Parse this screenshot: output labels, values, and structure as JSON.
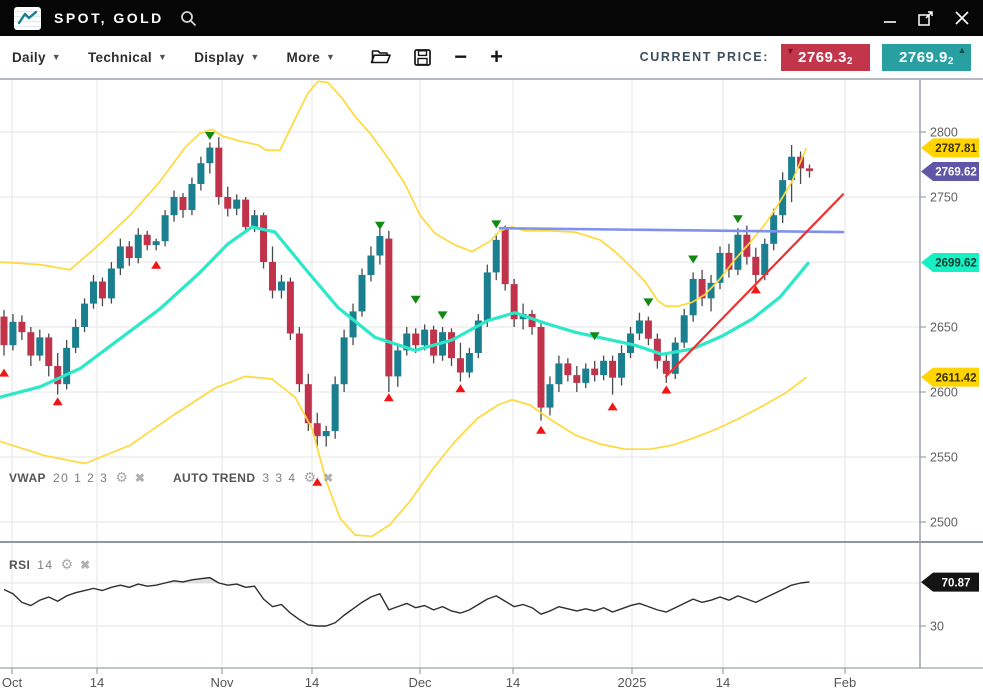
{
  "titlebar": {
    "title": "SPOT, GOLD"
  },
  "toolbar": {
    "menus": [
      {
        "label": "Daily"
      },
      {
        "label": "Technical"
      },
      {
        "label": "Display"
      },
      {
        "label": "More"
      }
    ],
    "icons": [
      "open-folder",
      "save",
      "zoom-out",
      "zoom-in"
    ],
    "minus_glyph": "−",
    "plus_glyph": "+",
    "current_price_label": "CURRENT PRICE:",
    "bid": {
      "value": "2769.3",
      "sub_digit": "2",
      "direction": "down",
      "bg": "#C2354A",
      "arrow_glyph": "▼"
    },
    "ask": {
      "value": "2769.9",
      "sub_digit": "2",
      "direction": "up",
      "bg": "#28A0A2",
      "arrow_glyph": "▲"
    }
  },
  "indicators": {
    "vwap": {
      "name": "VWAP",
      "params": "20 1 2 3"
    },
    "auto_trend": {
      "name": "AUTO TREND",
      "params": "3 3 4"
    },
    "rsi": {
      "name": "RSI",
      "params": "14"
    },
    "gear_glyph": "⚙",
    "close_glyph": "✖"
  },
  "chart_data": {
    "type": "candlestick",
    "symbol": "SPOT, GOLD",
    "timeframe": "Daily",
    "grid_prices": [
      2800,
      2750,
      2700,
      2650,
      2600,
      2550,
      2500
    ],
    "y_ticks_main": [
      2800,
      2750,
      2650,
      2600,
      2550,
      2500
    ],
    "rsi_grid": [
      70,
      30
    ],
    "y_ticks_rsi": [
      30
    ],
    "x_ticks": [
      {
        "x": 12,
        "label": "Oct"
      },
      {
        "x": 97,
        "label": "14"
      },
      {
        "x": 222,
        "label": "Nov"
      },
      {
        "x": 312,
        "label": "14"
      },
      {
        "x": 420,
        "label": "Dec"
      },
      {
        "x": 513,
        "label": "14"
      },
      {
        "x": 632,
        "label": "2025"
      },
      {
        "x": 723,
        "label": "14"
      },
      {
        "x": 845,
        "label": "Feb"
      }
    ],
    "candles": [
      [
        2658,
        2663,
        2628,
        2636
      ],
      [
        2636,
        2660,
        2632,
        2654
      ],
      [
        2654,
        2659,
        2640,
        2646
      ],
      [
        2646,
        2650,
        2620,
        2628
      ],
      [
        2628,
        2648,
        2624,
        2642
      ],
      [
        2642,
        2645,
        2612,
        2620
      ],
      [
        2620,
        2630,
        2598,
        2606
      ],
      [
        2606,
        2640,
        2602,
        2634
      ],
      [
        2634,
        2656,
        2630,
        2650
      ],
      [
        2650,
        2672,
        2646,
        2668
      ],
      [
        2668,
        2690,
        2664,
        2685
      ],
      [
        2685,
        2688,
        2666,
        2672
      ],
      [
        2672,
        2700,
        2668,
        2695
      ],
      [
        2695,
        2718,
        2690,
        2712
      ],
      [
        2712,
        2716,
        2697,
        2703
      ],
      [
        2703,
        2726,
        2699,
        2721
      ],
      [
        2721,
        2724,
        2709,
        2713
      ],
      [
        2713,
        2718,
        2709,
        2716
      ],
      [
        2716,
        2740,
        2712,
        2736
      ],
      [
        2736,
        2755,
        2731,
        2750
      ],
      [
        2750,
        2753,
        2734,
        2740
      ],
      [
        2740,
        2765,
        2736,
        2760
      ],
      [
        2760,
        2781,
        2755,
        2776
      ],
      [
        2776,
        2792,
        2768,
        2788
      ],
      [
        2788,
        2796,
        2744,
        2750
      ],
      [
        2750,
        2758,
        2735,
        2741
      ],
      [
        2741,
        2752,
        2736,
        2748
      ],
      [
        2748,
        2750,
        2722,
        2727
      ],
      [
        2727,
        2740,
        2723,
        2736
      ],
      [
        2736,
        2738,
        2695,
        2700
      ],
      [
        2700,
        2712,
        2672,
        2678
      ],
      [
        2678,
        2690,
        2672,
        2685
      ],
      [
        2685,
        2688,
        2640,
        2645
      ],
      [
        2645,
        2650,
        2600,
        2606
      ],
      [
        2606,
        2614,
        2570,
        2576
      ],
      [
        2576,
        2584,
        2556,
        2566
      ],
      [
        2566,
        2574,
        2558,
        2570
      ],
      [
        2570,
        2612,
        2564,
        2606
      ],
      [
        2606,
        2648,
        2600,
        2642
      ],
      [
        2642,
        2668,
        2636,
        2662
      ],
      [
        2662,
        2695,
        2658,
        2690
      ],
      [
        2690,
        2712,
        2685,
        2705
      ],
      [
        2705,
        2726,
        2698,
        2720
      ],
      [
        2718,
        2724,
        2600,
        2612
      ],
      [
        2612,
        2636,
        2604,
        2632
      ],
      [
        2632,
        2650,
        2628,
        2645
      ],
      [
        2645,
        2649,
        2630,
        2636
      ],
      [
        2636,
        2652,
        2632,
        2648
      ],
      [
        2648,
        2651,
        2622,
        2628
      ],
      [
        2628,
        2650,
        2624,
        2646
      ],
      [
        2646,
        2649,
        2620,
        2626
      ],
      [
        2626,
        2638,
        2608,
        2615
      ],
      [
        2615,
        2634,
        2611,
        2630
      ],
      [
        2630,
        2660,
        2626,
        2655
      ],
      [
        2655,
        2698,
        2650,
        2692
      ],
      [
        2692,
        2722,
        2686,
        2717
      ],
      [
        2726,
        2728,
        2678,
        2683
      ],
      [
        2683,
        2687,
        2650,
        2656
      ],
      [
        2656,
        2668,
        2648,
        2660
      ],
      [
        2660,
        2663,
        2644,
        2650
      ],
      [
        2650,
        2654,
        2578,
        2588
      ],
      [
        2588,
        2612,
        2582,
        2606
      ],
      [
        2606,
        2628,
        2600,
        2622
      ],
      [
        2622,
        2626,
        2608,
        2613
      ],
      [
        2613,
        2620,
        2600,
        2607
      ],
      [
        2607,
        2622,
        2603,
        2618
      ],
      [
        2618,
        2624,
        2608,
        2613
      ],
      [
        2613,
        2628,
        2609,
        2624
      ],
      [
        2624,
        2628,
        2598,
        2611
      ],
      [
        2611,
        2636,
        2605,
        2630
      ],
      [
        2630,
        2650,
        2626,
        2645
      ],
      [
        2645,
        2661,
        2640,
        2655
      ],
      [
        2655,
        2658,
        2636,
        2641
      ],
      [
        2641,
        2645,
        2618,
        2624
      ],
      [
        2624,
        2629,
        2607,
        2614
      ],
      [
        2614,
        2642,
        2610,
        2638
      ],
      [
        2638,
        2664,
        2634,
        2659
      ],
      [
        2659,
        2692,
        2654,
        2687
      ],
      [
        2687,
        2694,
        2666,
        2672
      ],
      [
        2672,
        2690,
        2662,
        2684
      ],
      [
        2684,
        2712,
        2679,
        2707
      ],
      [
        2707,
        2714,
        2688,
        2694
      ],
      [
        2694,
        2726,
        2690,
        2721
      ],
      [
        2721,
        2728,
        2698,
        2704
      ],
      [
        2704,
        2711,
        2684,
        2690
      ],
      [
        2690,
        2718,
        2686,
        2714
      ],
      [
        2714,
        2741,
        2709,
        2736
      ],
      [
        2736,
        2769,
        2730,
        2763
      ],
      [
        2763,
        2790,
        2746,
        2781
      ],
      [
        2781,
        2785,
        2760,
        2772
      ],
      [
        2772,
        2775,
        2765,
        2770
      ]
    ],
    "signals": {
      "sell": [
        [
          23,
          2800
        ],
        [
          42,
          2731
        ],
        [
          46,
          2674
        ],
        [
          49,
          2662
        ],
        [
          55,
          2732
        ],
        [
          66,
          2646
        ],
        [
          72,
          2672
        ],
        [
          77,
          2705
        ],
        [
          82,
          2736
        ]
      ],
      "buy": [
        [
          0,
          2618
        ],
        [
          6,
          2596
        ],
        [
          17,
          2701
        ],
        [
          35,
          2534
        ],
        [
          43,
          2599
        ],
        [
          51,
          2606
        ],
        [
          60,
          2574
        ],
        [
          68,
          2592
        ],
        [
          74,
          2605
        ],
        [
          84,
          2682
        ]
      ]
    },
    "lines": {
      "upper_band": [
        [
          0,
          2700
        ],
        [
          40,
          2698
        ],
        [
          70,
          2694
        ],
        [
          100,
          2714
        ],
        [
          130,
          2736
        ],
        [
          160,
          2762
        ],
        [
          185,
          2788
        ],
        [
          200,
          2799
        ],
        [
          212,
          2802
        ],
        [
          222,
          2797
        ],
        [
          240,
          2793
        ],
        [
          258,
          2790
        ],
        [
          266,
          2786
        ],
        [
          280,
          2786
        ],
        [
          295,
          2810
        ],
        [
          308,
          2830
        ],
        [
          318,
          2839
        ],
        [
          328,
          2838
        ],
        [
          342,
          2826
        ],
        [
          355,
          2812
        ],
        [
          370,
          2799
        ],
        [
          388,
          2780
        ],
        [
          405,
          2760
        ],
        [
          420,
          2736
        ],
        [
          435,
          2722
        ],
        [
          455,
          2713
        ],
        [
          472,
          2708
        ],
        [
          490,
          2716
        ],
        [
          500,
          2724
        ],
        [
          512,
          2727
        ],
        [
          525,
          2724
        ],
        [
          550,
          2724
        ],
        [
          575,
          2723
        ],
        [
          600,
          2717
        ],
        [
          615,
          2708
        ],
        [
          630,
          2697
        ],
        [
          645,
          2685
        ],
        [
          658,
          2670
        ],
        [
          666,
          2666
        ],
        [
          678,
          2666
        ],
        [
          692,
          2669
        ],
        [
          705,
          2675
        ],
        [
          720,
          2687
        ],
        [
          735,
          2702
        ],
        [
          750,
          2715
        ],
        [
          765,
          2729
        ],
        [
          778,
          2744
        ],
        [
          792,
          2762
        ],
        [
          806,
          2787
        ]
      ],
      "lower_band": [
        [
          0,
          2562
        ],
        [
          45,
          2551
        ],
        [
          85,
          2545
        ],
        [
          130,
          2559
        ],
        [
          175,
          2583
        ],
        [
          215,
          2603
        ],
        [
          245,
          2612
        ],
        [
          272,
          2610
        ],
        [
          295,
          2596
        ],
        [
          312,
          2572
        ],
        [
          326,
          2532
        ],
        [
          340,
          2503
        ],
        [
          355,
          2490
        ],
        [
          372,
          2489
        ],
        [
          390,
          2498
        ],
        [
          410,
          2516
        ],
        [
          432,
          2540
        ],
        [
          455,
          2562
        ],
        [
          478,
          2580
        ],
        [
          498,
          2590
        ],
        [
          512,
          2594
        ],
        [
          530,
          2590
        ],
        [
          552,
          2578
        ],
        [
          575,
          2567
        ],
        [
          600,
          2560
        ],
        [
          625,
          2556
        ],
        [
          650,
          2556
        ],
        [
          672,
          2559
        ],
        [
          695,
          2565
        ],
        [
          718,
          2572
        ],
        [
          740,
          2580
        ],
        [
          762,
          2589
        ],
        [
          785,
          2599
        ],
        [
          806,
          2611
        ]
      ],
      "vwap": [
        [
          0,
          2596
        ],
        [
          40,
          2604
        ],
        [
          80,
          2618
        ],
        [
          120,
          2641
        ],
        [
          160,
          2664
        ],
        [
          200,
          2692
        ],
        [
          228,
          2714
        ],
        [
          252,
          2727
        ],
        [
          275,
          2723
        ],
        [
          305,
          2695
        ],
        [
          338,
          2665
        ],
        [
          375,
          2642
        ],
        [
          415,
          2632
        ],
        [
          452,
          2640
        ],
        [
          488,
          2655
        ],
        [
          515,
          2661
        ],
        [
          545,
          2653
        ],
        [
          575,
          2646
        ],
        [
          605,
          2641
        ],
        [
          635,
          2636
        ],
        [
          662,
          2629
        ],
        [
          692,
          2633
        ],
        [
          722,
          2643
        ],
        [
          752,
          2656
        ],
        [
          780,
          2673
        ],
        [
          808,
          2699
        ]
      ],
      "resistance": [
        [
          500,
          2726
        ],
        [
          843,
          2723
        ]
      ],
      "trend": [
        [
          666,
          2612
        ],
        [
          843,
          2752
        ]
      ]
    },
    "rsi_values": [
      64,
      60,
      52,
      49,
      54,
      57,
      53,
      58,
      61,
      63,
      65,
      63,
      66,
      68,
      66,
      69,
      67,
      68,
      70,
      72,
      71,
      73,
      74,
      75,
      70,
      68,
      69,
      66,
      67,
      55,
      48,
      50,
      42,
      36,
      31,
      30,
      30,
      33,
      40,
      46,
      52,
      57,
      60,
      45,
      48,
      51,
      47,
      49,
      45,
      48,
      44,
      42,
      45,
      50,
      55,
      58,
      53,
      48,
      50,
      47,
      41,
      44,
      48,
      46,
      44,
      46,
      44,
      47,
      43,
      46,
      49,
      51,
      48,
      45,
      43,
      47,
      51,
      55,
      52,
      54,
      57,
      54,
      58,
      55,
      52,
      56,
      60,
      64,
      68,
      70,
      71
    ],
    "rsi_overbought": 70,
    "rsi_oversold": 30,
    "badges_axis": [
      {
        "label": "2787.81",
        "price": 2787.81,
        "bg": "#FFD400",
        "fg": "#3a3206"
      },
      {
        "label": "2769.62",
        "price": 2769.62,
        "bg": "#5E57A7",
        "fg": "#ffffff"
      },
      {
        "label": "2699.62",
        "price": 2699.62,
        "bg": "#17EFC4",
        "fg": "#123a32"
      },
      {
        "label": "2611.42",
        "price": 2611.42,
        "bg": "#FFD400",
        "fg": "#3a3206"
      }
    ],
    "rsi_badge": {
      "label": "70.87",
      "value": 70.87,
      "bg": "#141414",
      "fg": "#ffffff"
    },
    "colors": {
      "up": "#1A7F8E",
      "down": "#C1334B",
      "wick": "#4a4a4a",
      "band": "#FFD93B",
      "vwap": "#2BE9C8",
      "resistance": "#8090EE",
      "trend": "#EF2F2F",
      "buy_signal": "#F01616",
      "sell_signal": "#128A12",
      "grid": "#e5e5e5",
      "axis": "#9aa2a8",
      "separator": "#8f969c",
      "rsi_line": "#2e2e2e",
      "rsi_fill": "#c9c9c9",
      "tick_text": "#606060",
      "x_text": "#555555"
    }
  }
}
